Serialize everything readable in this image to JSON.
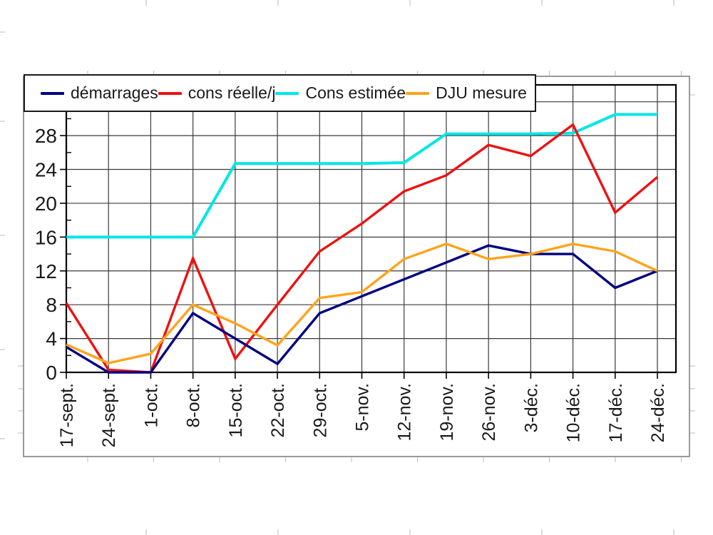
{
  "chart_data": {
    "type": "line",
    "title": "",
    "categories": [
      "17-sept.",
      "24-sept.",
      "1-oct.",
      "8-oct.",
      "15-oct.",
      "22-oct.",
      "29-oct.",
      "5-nov.",
      "12-nov.",
      "19-nov.",
      "26-nov.",
      "3-déc.",
      "10-déc.",
      "17-déc.",
      "24-déc."
    ],
    "series": [
      {
        "name": "démarrages",
        "color": "#000080",
        "values": [
          3,
          0,
          0,
          7,
          4,
          1,
          7,
          9,
          11,
          13,
          15,
          14,
          14,
          10,
          12
        ]
      },
      {
        "name": "cons réelle/j",
        "color": "#ee1111",
        "values": [
          8.2,
          0.3,
          0,
          13.5,
          1.6,
          8,
          14.3,
          17.6,
          21.4,
          23.3,
          26.9,
          25.6,
          29.3,
          18.9,
          23.1
        ]
      },
      {
        "name": "Cons estimée",
        "color": "#00e6e6",
        "values": [
          16,
          16,
          16,
          16,
          24.7,
          24.7,
          24.7,
          24.7,
          24.8,
          28.2,
          28.2,
          28.2,
          28.3,
          30.5,
          30.5
        ]
      },
      {
        "name": "DJU mesure",
        "color": "#ffa31a",
        "values": [
          3.3,
          1.1,
          2.2,
          8,
          5.8,
          3.2,
          8.8,
          9.5,
          13.4,
          15.2,
          13.4,
          14,
          15.2,
          14.3,
          12
        ]
      }
    ],
    "xlabel": "",
    "ylabel": "",
    "y_axis": {
      "min": 0,
      "max": 34,
      "tick_labels": [
        0,
        4,
        8,
        12,
        16,
        20,
        24,
        28
      ],
      "gridline_step": 4,
      "minor_tick_step": 2
    },
    "x_tick_rotation": -90,
    "grid": true,
    "legend_position": "top-left",
    "colors": {
      "grid": "#3a3a3a",
      "axis": "#000000",
      "chart_frame": "#808080",
      "sheet_ticks": "#c9c9c9",
      "text": "#1a1a1a"
    }
  }
}
